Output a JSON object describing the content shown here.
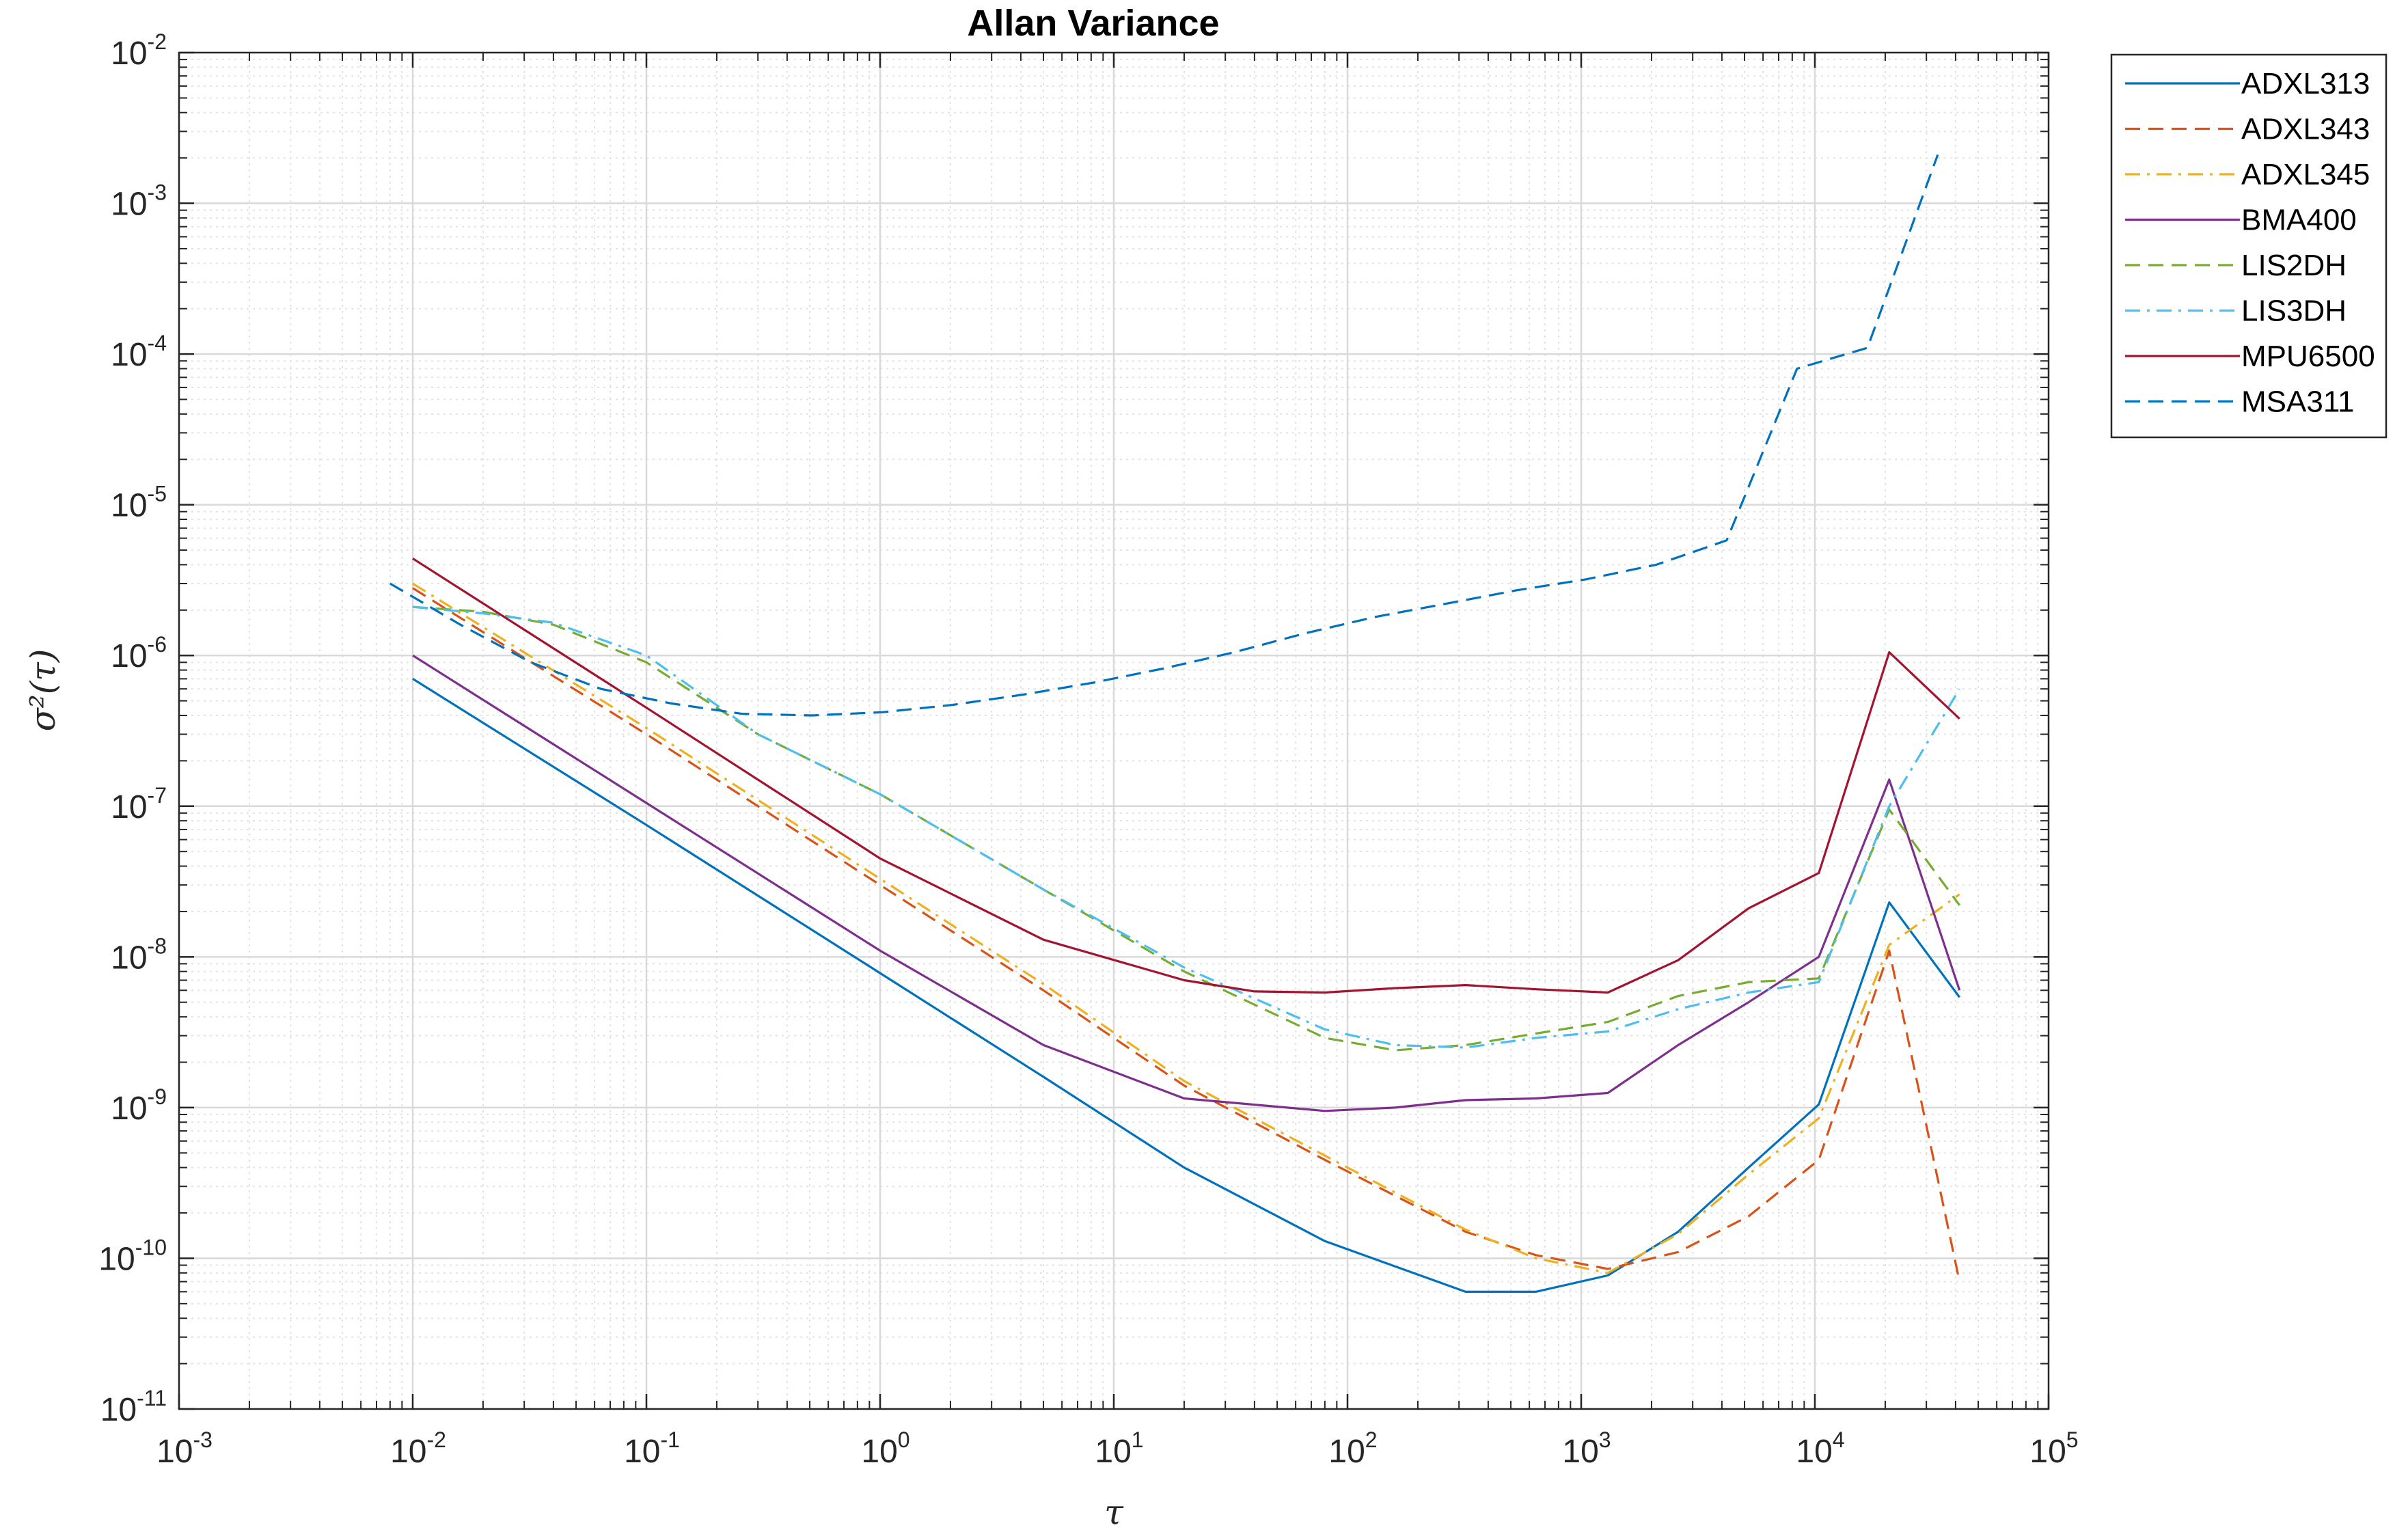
{
  "chart_data": {
    "type": "line",
    "title": "Allan Variance",
    "xlabel": "τ",
    "ylabel": "σ²(τ)",
    "xscale": "log",
    "yscale": "log",
    "xlim": [
      0.001,
      100000
    ],
    "ylim": [
      1e-11,
      0.01
    ],
    "grid": true,
    "minor_grid": true,
    "legend_position": "outside-top-right",
    "x_tick_labels": [
      {
        "base": "10",
        "exp": "-3"
      },
      {
        "base": "10",
        "exp": "-2"
      },
      {
        "base": "10",
        "exp": "-1"
      },
      {
        "base": "10",
        "exp": "0"
      },
      {
        "base": "10",
        "exp": "1"
      },
      {
        "base": "10",
        "exp": "2"
      },
      {
        "base": "10",
        "exp": "3"
      },
      {
        "base": "10",
        "exp": "4"
      },
      {
        "base": "10",
        "exp": "5"
      }
    ],
    "y_tick_labels": [
      {
        "base": "10",
        "exp": "-11"
      },
      {
        "base": "10",
        "exp": "-10"
      },
      {
        "base": "10",
        "exp": "-9"
      },
      {
        "base": "10",
        "exp": "-8"
      },
      {
        "base": "10",
        "exp": "-7"
      },
      {
        "base": "10",
        "exp": "-6"
      },
      {
        "base": "10",
        "exp": "-5"
      },
      {
        "base": "10",
        "exp": "-4"
      },
      {
        "base": "10",
        "exp": "-3"
      },
      {
        "base": "10",
        "exp": "-2"
      }
    ],
    "series": [
      {
        "name": "ADXL313",
        "color": "#0072BD",
        "dash": "solid",
        "x": [
          0.01,
          0.1,
          1,
          5,
          20,
          80,
          320,
          640,
          1300,
          2600,
          5200,
          10400,
          20800,
          41600
        ],
        "y": [
          7e-07,
          7.5e-08,
          7.8e-09,
          1.6e-09,
          4e-10,
          1.3e-10,
          6e-11,
          6e-11,
          7.7e-11,
          1.5e-10,
          4e-10,
          1.05e-09,
          2.3e-08,
          5.4e-09
        ]
      },
      {
        "name": "ADXL343",
        "color": "#D95319",
        "dash": "dashed",
        "x": [
          0.01,
          0.1,
          1,
          5,
          20,
          80,
          320,
          640,
          1300,
          2600,
          5200,
          10400,
          20800,
          41600
        ],
        "y": [
          2.8e-06,
          3e-07,
          3e-08,
          6e-09,
          1.4e-09,
          4.5e-10,
          1.5e-10,
          1.05e-10,
          8.5e-11,
          1.1e-10,
          1.9e-10,
          4.5e-10,
          1.1e-08,
          7e-11
        ]
      },
      {
        "name": "ADXL345",
        "color": "#EDB120",
        "dash": "dashdot",
        "x": [
          0.01,
          0.1,
          1,
          5,
          20,
          80,
          320,
          640,
          1300,
          2600,
          5200,
          10400,
          20800,
          41600
        ],
        "y": [
          3e-06,
          3.3e-07,
          3.3e-08,
          6.6e-09,
          1.5e-09,
          4.8e-10,
          1.55e-10,
          1e-10,
          8e-11,
          1.45e-10,
          3.6e-10,
          8.5e-10,
          1.2e-08,
          2.6e-08
        ]
      },
      {
        "name": "BMA400",
        "color": "#7E2F8E",
        "dash": "solid",
        "x": [
          0.01,
          0.1,
          1,
          5,
          20,
          80,
          160,
          320,
          640,
          1300,
          2600,
          5200,
          10400,
          20800,
          41600
        ],
        "y": [
          1e-06,
          1.05e-07,
          1.1e-08,
          2.6e-09,
          1.15e-09,
          9.5e-10,
          1e-09,
          1.12e-09,
          1.15e-09,
          1.25e-09,
          2.6e-09,
          5e-09,
          1e-08,
          1.5e-07,
          6e-09
        ]
      },
      {
        "name": "LIS2DH",
        "color": "#77AC30",
        "dash": "dashed",
        "x": [
          0.01,
          0.02,
          0.04,
          0.1,
          0.3,
          1,
          5,
          20,
          80,
          160,
          320,
          640,
          1300,
          2600,
          5200,
          10400,
          20800,
          41600
        ],
        "y": [
          2.1e-06,
          1.95e-06,
          1.6e-06,
          9e-07,
          3e-07,
          1.2e-07,
          2.8e-08,
          8e-09,
          2.9e-09,
          2.4e-09,
          2.6e-09,
          3.1e-09,
          3.7e-09,
          5.5e-09,
          6.8e-09,
          7.2e-09,
          9.5e-08,
          2.2e-08
        ]
      },
      {
        "name": "LIS3DH",
        "color": "#4DBEEE",
        "dash": "dashdot",
        "x": [
          0.01,
          0.02,
          0.04,
          0.1,
          0.3,
          1,
          5,
          20,
          80,
          160,
          320,
          640,
          1300,
          2600,
          5200,
          10400,
          20800,
          41600
        ],
        "y": [
          2.1e-06,
          1.9e-06,
          1.65e-06,
          1e-06,
          3e-07,
          1.2e-07,
          2.8e-08,
          8.5e-09,
          3.3e-09,
          2.6e-09,
          2.5e-09,
          2.9e-09,
          3.2e-09,
          4.5e-09,
          5.8e-09,
          6.8e-09,
          1e-07,
          6e-07
        ]
      },
      {
        "name": "MPU6500",
        "color": "#A2142F",
        "dash": "solid",
        "x": [
          0.01,
          0.1,
          1,
          5,
          20,
          40,
          80,
          160,
          320,
          640,
          1300,
          2600,
          5200,
          10400,
          20800,
          41600
        ],
        "y": [
          4.4e-06,
          4.5e-07,
          4.5e-08,
          1.3e-08,
          7e-09,
          5.9e-09,
          5.8e-09,
          6.2e-09,
          6.5e-09,
          6.1e-09,
          5.8e-09,
          9.5e-09,
          2.1e-08,
          3.6e-08,
          1.05e-06,
          3.8e-07
        ]
      },
      {
        "name": "MSA311",
        "color": "#0072BD",
        "dash": "dashed",
        "x": [
          0.008,
          0.016,
          0.032,
          0.064,
          0.128,
          0.256,
          0.512,
          1.024,
          2.048,
          4.096,
          8.192,
          16.38,
          32.77,
          65.54,
          131.1,
          262.1,
          524.3,
          1049,
          2097,
          4194,
          8389,
          16777,
          33554
        ],
        "y": [
          3e-06,
          1.6e-06,
          9e-07,
          6e-07,
          4.8e-07,
          4.1e-07,
          4e-07,
          4.2e-07,
          4.7e-07,
          5.5e-07,
          6.6e-07,
          8.2e-07,
          1.05e-06,
          1.4e-06,
          1.8e-06,
          2.2e-06,
          2.7e-06,
          3.2e-06,
          4e-06,
          5.8e-06,
          8e-05,
          0.00011,
          0.0021
        ]
      }
    ]
  }
}
